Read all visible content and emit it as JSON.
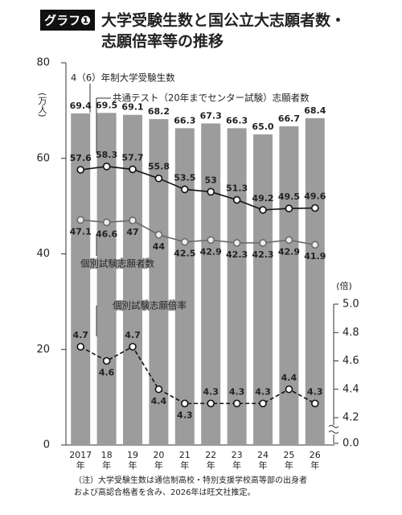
{
  "chart_data": {
    "type": "bar",
    "badge": "グラフ❶",
    "title_lines": [
      "大学受験生数と国公立大志願者数・",
      "志願倍率等の推移"
    ],
    "ylabel": "(万人)",
    "y2label": "(倍)",
    "categories": [
      "2017年",
      "18年",
      "19年",
      "20年",
      "21年",
      "22年",
      "23年",
      "24年",
      "25年",
      "26年"
    ],
    "ylim": [
      0,
      80
    ],
    "yticks": [
      0,
      20,
      40,
      60,
      80
    ],
    "y2lim": [
      0,
      5.0
    ],
    "y2ticks": [
      {
        "value": 0,
        "label": "0.0"
      },
      4.2,
      4.4,
      4.6,
      4.8,
      {
        "value": 5,
        "label": "5.0"
      }
    ],
    "y2_break": true,
    "series": [
      {
        "name": "4（6）年制大学受験生数",
        "type": "bar",
        "color": "#9c9c9c",
        "values": [
          69.4,
          69.5,
          69.1,
          68.2,
          66.3,
          67.3,
          66.3,
          65.0,
          66.7,
          68.4
        ],
        "value_labels": [
          "69.4",
          "69.5",
          "69.1",
          "68.2",
          "66.3",
          "67.3",
          "66.3",
          "65.0",
          "66.7",
          "68.4"
        ]
      },
      {
        "name": "共通テスト（20年までセンター試験）志願者数",
        "type": "line",
        "color": "#111111",
        "values": [
          57.6,
          58.3,
          57.7,
          55.8,
          53.5,
          53.0,
          51.3,
          49.2,
          49.5,
          49.6
        ]
      },
      {
        "name": "個別試験志願者数",
        "type": "line",
        "color": "#6a6a6a",
        "values": [
          47.1,
          46.6,
          47.0,
          44.0,
          42.5,
          42.9,
          42.3,
          42.3,
          42.9,
          41.9
        ]
      },
      {
        "name": "個別試験志願倍率",
        "type": "line",
        "axis": "y2",
        "dashed": true,
        "color": "#111111",
        "values": [
          4.7,
          4.6,
          4.7,
          4.4,
          4.3,
          4.3,
          4.3,
          4.3,
          4.4,
          4.3
        ]
      }
    ],
    "notes": [
      "（注）大学受験生数は通信制高校・特別支援学校高等部の出身者",
      "および高認合格者を含み、2026年は旺文社推定。"
    ]
  }
}
